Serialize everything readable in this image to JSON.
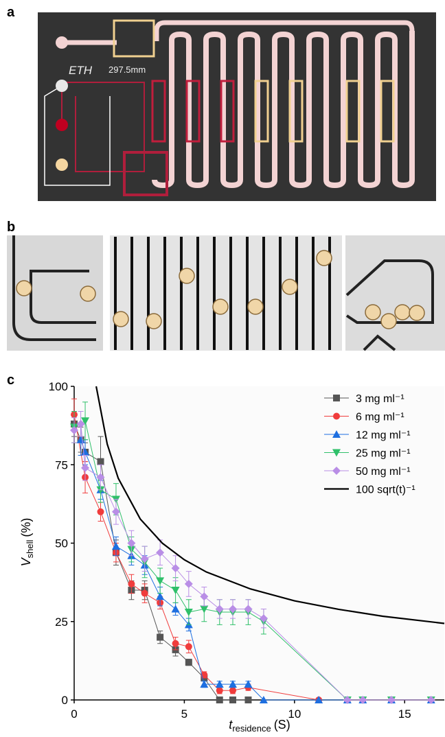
{
  "panels": {
    "a": {
      "label": "a",
      "logo": "ETH",
      "scale_note": "297.5mm"
    },
    "b": {
      "label": "b"
    },
    "c": {
      "label": "c"
    }
  },
  "chart_data": {
    "type": "line",
    "ylabel": "V",
    "ylabel_sub": "shell",
    "ylabel_unit": "(%)",
    "xlabel": "t",
    "xlabel_sub": "residence",
    "xlabel_unit": "(S)",
    "xlim": [
      0,
      16.8
    ],
    "xticks": [
      0,
      5,
      10,
      15
    ],
    "ylim": [
      0,
      100
    ],
    "yticks": [
      0,
      25,
      50,
      75,
      100
    ],
    "legend": "upper right",
    "series": [
      {
        "name": "3 mg ml⁻¹",
        "color": "#555555",
        "marker": "square",
        "x": [
          0,
          0.3,
          0.5,
          1.2,
          1.9,
          2.6,
          3.2,
          3.9,
          4.6,
          5.2,
          5.9,
          6.6,
          7.2,
          7.9
        ],
        "values": [
          88,
          83,
          79,
          76,
          47,
          35,
          35,
          20,
          16,
          12,
          7,
          0,
          0,
          0
        ],
        "errors": [
          4,
          4,
          3,
          8,
          4,
          3,
          3,
          2,
          2,
          1,
          1,
          0,
          0,
          0
        ]
      },
      {
        "name": "6 mg ml⁻¹",
        "color": "#f03c3c",
        "marker": "circle",
        "x": [
          0,
          0.5,
          1.2,
          1.9,
          2.6,
          3.2,
          3.9,
          4.6,
          5.2,
          5.9,
          6.6,
          7.2,
          7.9,
          11.1,
          12.4,
          13.1,
          14.4,
          16.2
        ],
        "values": [
          91,
          71,
          60,
          47,
          37,
          34,
          31,
          18,
          17,
          8,
          3,
          3,
          4,
          0,
          0,
          0,
          0,
          0
        ],
        "errors": [
          5,
          5,
          3,
          3,
          3,
          3,
          2,
          2,
          2,
          1,
          1,
          1,
          1,
          0,
          0,
          0,
          0,
          0
        ]
      },
      {
        "name": "12 mg ml⁻¹",
        "color": "#1e6fe0",
        "marker": "triangle-up",
        "x": [
          0.3,
          0.5,
          1.2,
          1.9,
          2.6,
          3.2,
          3.9,
          4.6,
          5.2,
          5.9,
          6.6,
          7.2,
          7.9,
          8.6,
          11.1,
          12.4,
          13.1,
          14.4,
          16.2
        ],
        "values": [
          83,
          79,
          67,
          49,
          46,
          43,
          33,
          29,
          24,
          5,
          5,
          5,
          5,
          0,
          0,
          0,
          0,
          0,
          0
        ],
        "errors": [
          5,
          4,
          3,
          3,
          3,
          3,
          3,
          2,
          2,
          1,
          1,
          1,
          1,
          0,
          0,
          0,
          0,
          0,
          0
        ]
      },
      {
        "name": "25 mg ml⁻¹",
        "color": "#2fc06a",
        "marker": "triangle-down",
        "x": [
          0,
          0.5,
          1.2,
          1.9,
          2.6,
          3.2,
          3.9,
          4.6,
          5.2,
          5.9,
          6.6,
          7.2,
          7.9,
          8.6,
          12.4,
          13.1,
          14.4,
          16.2
        ],
        "values": [
          87,
          89,
          67,
          64,
          48,
          44,
          38,
          35,
          28,
          29,
          28,
          28,
          28,
          25,
          0,
          0,
          0,
          0
        ],
        "errors": [
          5,
          6,
          4,
          5,
          4,
          5,
          4,
          4,
          4,
          4,
          4,
          4,
          4,
          4,
          0,
          0,
          0,
          0
        ]
      },
      {
        "name": "50 mg ml⁻¹",
        "color": "#b98ee6",
        "marker": "diamond",
        "x": [
          0,
          0.3,
          0.5,
          1.2,
          1.9,
          2.6,
          3.2,
          3.9,
          4.6,
          5.2,
          5.9,
          6.6,
          7.2,
          7.9,
          8.6,
          12.4,
          13.1,
          14.4,
          16.2
        ],
        "values": [
          86,
          88,
          74,
          71,
          60,
          50,
          45,
          47,
          42,
          37,
          33,
          29,
          29,
          29,
          26,
          0,
          0,
          0,
          0
        ],
        "errors": [
          4,
          4,
          4,
          4,
          4,
          4,
          4,
          4,
          4,
          4,
          3,
          3,
          3,
          3,
          3,
          0,
          0,
          0,
          0
        ]
      },
      {
        "name": "100 sqrt(t)⁻¹",
        "color": "#000000",
        "marker": "none",
        "x": [
          1,
          1.5,
          2,
          3,
          4,
          5,
          6,
          8,
          10,
          12,
          14,
          16.8
        ],
        "values": [
          100,
          81.6,
          70.7,
          57.7,
          50,
          44.7,
          40.8,
          35.4,
          31.6,
          28.9,
          26.7,
          24.4
        ]
      }
    ]
  }
}
